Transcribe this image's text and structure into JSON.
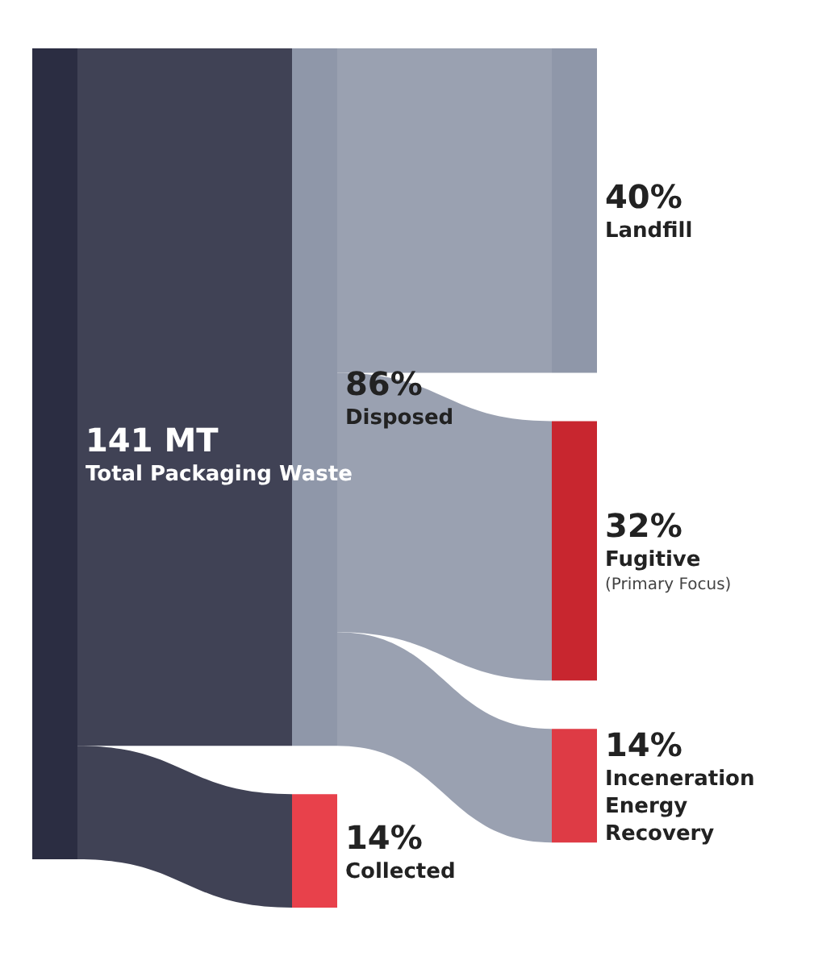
{
  "chart_data": {
    "type": "other",
    "categories": [
      "Disposed",
      "Collected",
      "Landfill",
      "Fugitive",
      "Inceneration Energy Recovery"
    ],
    "values": [
      86,
      14,
      40,
      32,
      14
    ],
    "value_labels": [
      "86%",
      "14%",
      "40%",
      "32%",
      "14%"
    ],
    "colors": [
      "#8f97a9",
      "#e8414b",
      "#8f97a9",
      "#c8262f",
      "#de3b45"
    ],
    "color": "#2b2d42",
    "annotations": [
      "141 MT",
      "Total Packaging Waste",
      {
        "text": "(Primary Focus)",
        "x": "Fugitive"
      }
    ]
  }
}
